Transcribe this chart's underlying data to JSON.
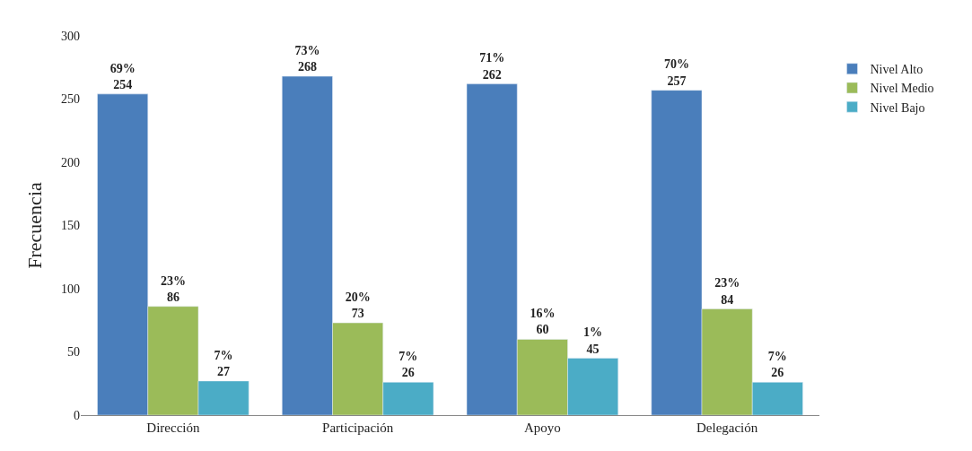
{
  "chart_data": {
    "type": "bar",
    "ylabel": "Frecuencia",
    "categories": [
      "Dirección",
      "Participación",
      "Apoyo",
      "Delegación"
    ],
    "series": [
      {
        "name": "Nivel Alto",
        "color": "#4a7ebb",
        "values": [
          254,
          268,
          262,
          257
        ],
        "value_labels": [
          "69%\n254",
          "73%\n268",
          "71%\n262",
          "70%\n257"
        ]
      },
      {
        "name": "Nivel Medio",
        "color": "#9bbb59",
        "values": [
          86,
          73,
          60,
          84
        ],
        "value_labels": [
          "23%\n86",
          "20%\n73",
          "16%\n60",
          "23%\n84"
        ]
      },
      {
        "name": "Nivel Bajo",
        "color": "#4bacc6",
        "values": [
          27,
          26,
          45,
          26
        ],
        "value_labels": [
          "7%\n27",
          "7%\n26",
          "1%\n45",
          "7%\n26"
        ]
      }
    ],
    "ylim": [
      0,
      300
    ],
    "yticks": [
      0,
      50,
      100,
      150,
      200,
      250,
      300
    ],
    "legend": "top right"
  }
}
